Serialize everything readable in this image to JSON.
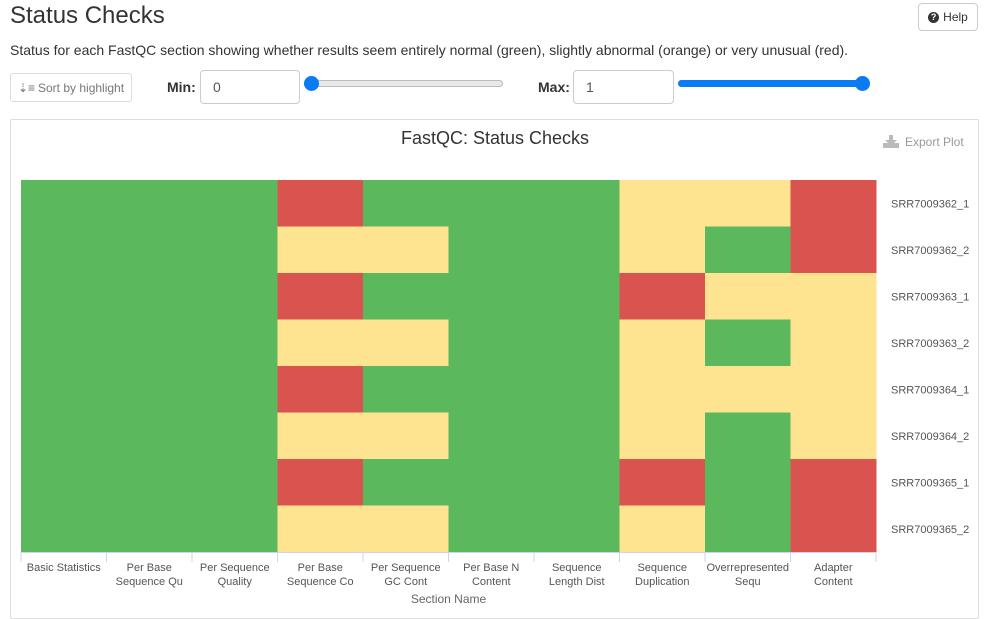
{
  "page": {
    "title": "Status Checks",
    "help_label": "Help",
    "description": "Status for each FastQC section showing whether results seem entirely normal (green), slightly abnormal (orange) or very unusual (red)."
  },
  "controls": {
    "sort_label": "Sort by highlight",
    "min_label": "Min:",
    "min_value": "0",
    "min_slider_value": 0,
    "max_label": "Max:",
    "max_value": "1",
    "max_slider_value": 1,
    "slider_range": [
      0,
      1
    ]
  },
  "plot": {
    "export_label": "Export Plot"
  },
  "colors": {
    "pass": "#5cb85c",
    "warn": "#fee391",
    "fail": "#d9534f",
    "accent": "#0a7bf2"
  },
  "chart_data": {
    "type": "heatmap",
    "title": "FastQC: Status Checks",
    "xlabel": "Section Name",
    "x_categories": [
      [
        "Basic Statistics"
      ],
      [
        "Per Base",
        "Sequence Qu"
      ],
      [
        "Per Sequence",
        "Quality"
      ],
      [
        "Per Base",
        "Sequence Co"
      ],
      [
        "Per Sequence",
        "GC Cont"
      ],
      [
        "Per Base N",
        "Content"
      ],
      [
        "Sequence",
        "Length Dist"
      ],
      [
        "Sequence",
        "Duplication"
      ],
      [
        "Overrepresented",
        "Sequ"
      ],
      [
        "Adapter",
        "Content"
      ]
    ],
    "y_categories": [
      "SRR7009362_1",
      "SRR7009362_2",
      "SRR7009363_1",
      "SRR7009363_2",
      "SRR7009364_1",
      "SRR7009364_2",
      "SRR7009365_1",
      "SRR7009365_2"
    ],
    "values": [
      [
        1,
        1,
        1,
        0,
        1,
        1,
        1,
        0.5,
        0.5,
        0
      ],
      [
        1,
        1,
        1,
        0.5,
        0.5,
        1,
        1,
        0.5,
        1,
        0
      ],
      [
        1,
        1,
        1,
        0,
        1,
        1,
        1,
        0,
        0.5,
        0.5
      ],
      [
        1,
        1,
        1,
        0.5,
        0.5,
        1,
        1,
        0.5,
        1,
        0.5
      ],
      [
        1,
        1,
        1,
        0,
        1,
        1,
        1,
        0.5,
        0.5,
        0.5
      ],
      [
        1,
        1,
        1,
        0.5,
        0.5,
        1,
        1,
        0.5,
        1,
        0.5
      ],
      [
        1,
        1,
        1,
        0,
        1,
        1,
        1,
        0,
        1,
        0
      ],
      [
        1,
        1,
        1,
        0.5,
        0.5,
        1,
        1,
        0.5,
        1,
        0
      ]
    ],
    "value_range": [
      0,
      1
    ]
  }
}
